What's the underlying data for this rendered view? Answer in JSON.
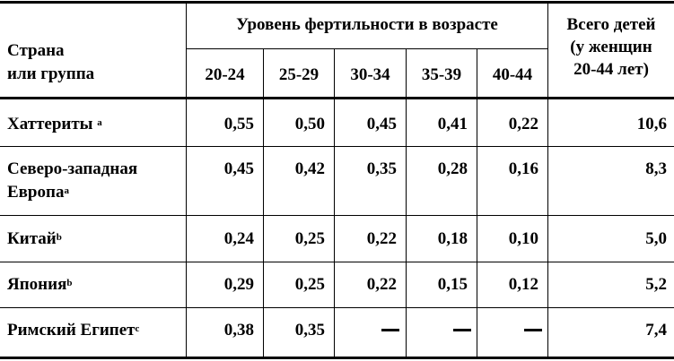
{
  "header": {
    "country_line1": "Страна",
    "country_line2": "или группа",
    "fertility_title": "Уровень фертильности в возрасте",
    "ages": [
      "20-24",
      "25-29",
      "30-34",
      "35-39",
      "40-44"
    ],
    "total_line1": "Всего детей",
    "total_line2": "(у женщин",
    "total_line3": "20-44 лет)"
  },
  "rows": [
    {
      "name_line1": "Хаттериты",
      "name_line2": "",
      "sup": "a",
      "values": [
        "0,55",
        "0,50",
        "0,45",
        "0,41",
        "0,22"
      ],
      "total": "10,6"
    },
    {
      "name_line1": "Северо-западная",
      "name_line2": "Европа",
      "sup": "a",
      "values": [
        "0,45",
        "0,42",
        "0,35",
        "0,28",
        "0,16"
      ],
      "total": "8,3"
    },
    {
      "name_line1": "Китай",
      "name_line2": "",
      "sup": "b",
      "values": [
        "0,24",
        "0,25",
        "0,22",
        "0,18",
        "0,10"
      ],
      "total": "5,0"
    },
    {
      "name_line1": "Япония",
      "name_line2": "",
      "sup": "b",
      "values": [
        "0,29",
        "0,25",
        "0,22",
        "0,15",
        "0,12"
      ],
      "total": "5,2"
    },
    {
      "name_line1": "Римский Египет",
      "name_line2": "",
      "sup": "c",
      "values": [
        "0,38",
        "0,35",
        "",
        "",
        ""
      ],
      "total": "7,4"
    }
  ]
}
